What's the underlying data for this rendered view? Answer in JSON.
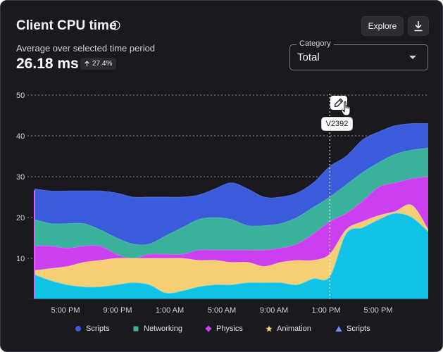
{
  "header": {
    "title": "Client CPU time",
    "subtitle": "Average over selected time period",
    "metric_value": "26.18 ms",
    "change_badge": "27.4%",
    "explore_label": "Explore"
  },
  "category_select": {
    "legend": "Category",
    "value": "Total"
  },
  "tooltip": {
    "label": "V2392"
  },
  "icons": {
    "info": "info-icon",
    "download": "download-icon",
    "trend": "arrow-up-icon",
    "edit": "pencil-icon",
    "cursor": "hand-pointer-icon"
  },
  "colors": {
    "scripts": "#3b5bdb",
    "networking": "#3ab19b",
    "physics": "#cc3ff0",
    "animation": "#f6cf74",
    "scripts_fill": "#0fc2e6",
    "background": "#19191f"
  },
  "chart_data": {
    "type": "area",
    "stacked": true,
    "x_ticks": [
      "5:00 PM",
      "9:00 PM",
      "1:00 AM",
      "5:00 AM",
      "9:00 AM",
      "1:00 PM",
      "5:00 PM"
    ],
    "y_ticks": [
      10,
      20,
      30,
      40,
      50
    ],
    "ylim": [
      0,
      50
    ],
    "grid": "horizontal-dotted",
    "legend_position": "bottom",
    "x": [
      0,
      3,
      6,
      9,
      12,
      15,
      18,
      21,
      24,
      27,
      30,
      33,
      36,
      39,
      42,
      45,
      48,
      51,
      54,
      57,
      60,
      63,
      66,
      69,
      72
    ],
    "series": [
      {
        "name": "Scripts",
        "totals": [
          27,
          26.5,
          26.5,
          26.5,
          26.5,
          26,
          25,
          25,
          25,
          25,
          25.5,
          27,
          28.5,
          27,
          25,
          25,
          26,
          28.5,
          32.5,
          35,
          39,
          41,
          42.5,
          43,
          43
        ]
      },
      {
        "name": "Networking",
        "totals": [
          19.5,
          18.5,
          18.5,
          18.5,
          17,
          15,
          13.5,
          13.5,
          15.5,
          17.5,
          19.5,
          20,
          19.5,
          18,
          18,
          18.5,
          20,
          22.5,
          25,
          28,
          31,
          33.5,
          35.5,
          36.5,
          37
        ]
      },
      {
        "name": "Physics",
        "totals": [
          13,
          13,
          12.5,
          13,
          13,
          11,
          10,
          11,
          11,
          11,
          12,
          12,
          12,
          12,
          12,
          12.5,
          13.5,
          16,
          19,
          21,
          24,
          27.5,
          28.5,
          29.5,
          30
        ]
      },
      {
        "name": "Animation",
        "totals": [
          7,
          7.5,
          8,
          9,
          9.5,
          10,
          10,
          10,
          10,
          10,
          9.5,
          9.5,
          9,
          9,
          8,
          9,
          9.5,
          9.5,
          11,
          17,
          19,
          20.5,
          21.5,
          23,
          17
        ]
      },
      {
        "name": "Scripts",
        "totals": [
          6,
          4.5,
          3.5,
          3,
          3,
          3.5,
          4,
          3.5,
          1.5,
          2,
          3,
          3.5,
          3.5,
          4,
          4,
          4,
          3.5,
          5,
          5.5,
          16,
          17.5,
          19.5,
          21,
          20,
          16.5
        ]
      }
    ],
    "marker": {
      "label": "V2392",
      "x_index": 18
    }
  }
}
